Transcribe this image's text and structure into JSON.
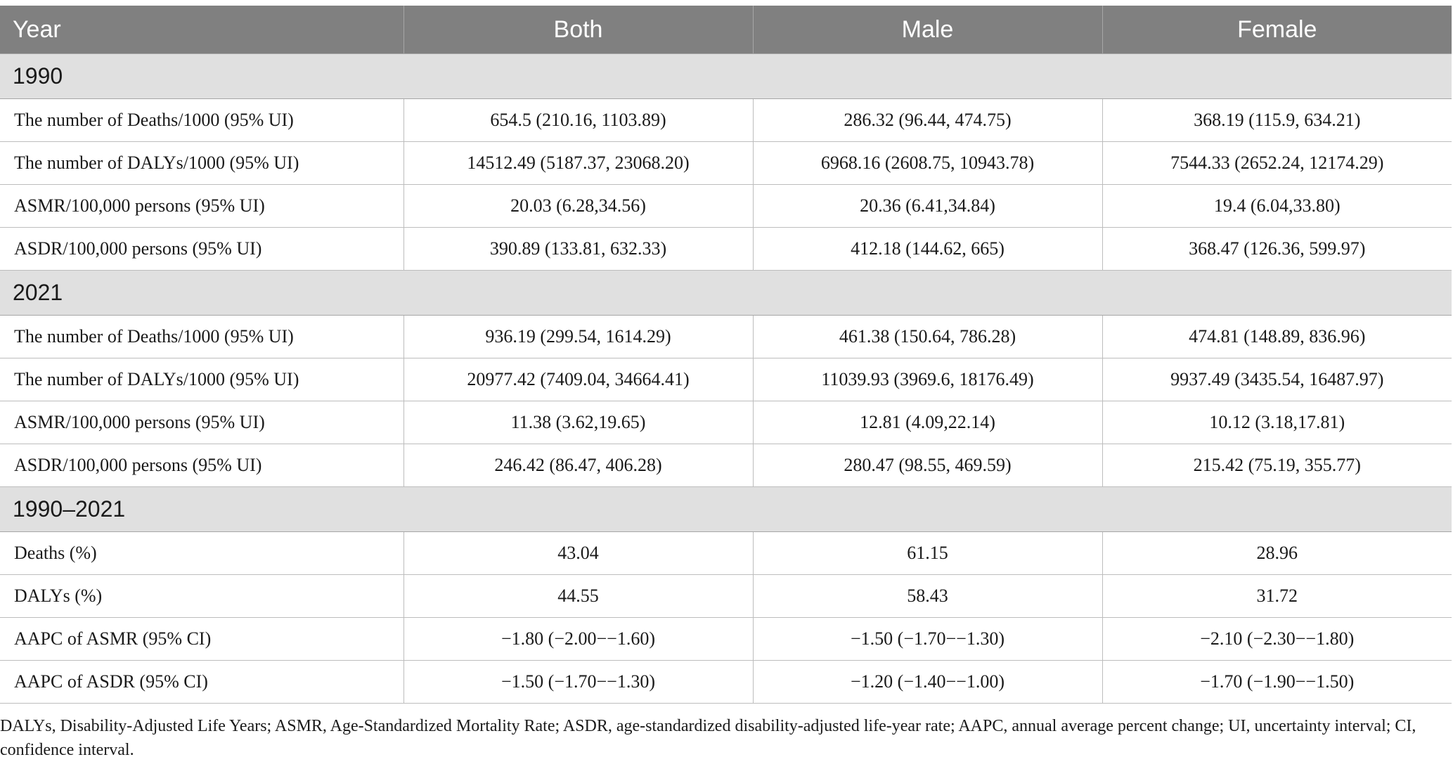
{
  "table": {
    "headers": [
      "Year",
      "Both",
      "Male",
      "Female"
    ],
    "sections": [
      {
        "label": "1990",
        "rows": [
          [
            "The number of Deaths/1000 (95% UI)",
            "654.5 (210.16, 1103.89)",
            "286.32 (96.44, 474.75)",
            "368.19 (115.9, 634.21)"
          ],
          [
            "The number of DALYs/1000 (95% UI)",
            "14512.49 (5187.37, 23068.20)",
            "6968.16 (2608.75, 10943.78)",
            "7544.33 (2652.24, 12174.29)"
          ],
          [
            "ASMR/100,000 persons (95% UI)",
            "20.03 (6.28,34.56)",
            "20.36 (6.41,34.84)",
            "19.4 (6.04,33.80)"
          ],
          [
            "ASDR/100,000 persons (95% UI)",
            "390.89 (133.81, 632.33)",
            "412.18 (144.62, 665)",
            "368.47 (126.36, 599.97)"
          ]
        ]
      },
      {
        "label": "2021",
        "rows": [
          [
            "The number of Deaths/1000 (95% UI)",
            "936.19 (299.54, 1614.29)",
            "461.38 (150.64, 786.28)",
            "474.81 (148.89, 836.96)"
          ],
          [
            "The number of DALYs/1000 (95% UI)",
            "20977.42 (7409.04, 34664.41)",
            "11039.93 (3969.6, 18176.49)",
            "9937.49 (3435.54, 16487.97)"
          ],
          [
            "ASMR/100,000 persons (95% UI)",
            "11.38 (3.62,19.65)",
            "12.81 (4.09,22.14)",
            "10.12 (3.18,17.81)"
          ],
          [
            "ASDR/100,000 persons (95% UI)",
            "246.42 (86.47, 406.28)",
            "280.47 (98.55, 469.59)",
            "215.42 (75.19, 355.77)"
          ]
        ]
      },
      {
        "label": "1990–2021",
        "rows": [
          [
            "Deaths (%)",
            "43.04",
            "61.15",
            "28.96"
          ],
          [
            "DALYs (%)",
            "44.55",
            "58.43",
            "31.72"
          ],
          [
            "AAPC of ASMR (95% CI)",
            "−1.80 (−2.00−−1.60)",
            "−1.50 (−1.70−−1.30)",
            "−2.10 (−2.30−−1.80)"
          ],
          [
            "AAPC of ASDR (95% CI)",
            "−1.50 (−1.70−−1.30)",
            "−1.20 (−1.40−−1.00)",
            "−1.70 (−1.90−−1.50)"
          ]
        ]
      }
    ]
  },
  "footnote": "DALYs, Disability-Adjusted Life Years; ASMR, Age-Standardized Mortality Rate; ASDR, age-standardized disability-adjusted life-year rate; AAPC, annual average percent change; UI, uncertainty interval; CI, confidence interval."
}
